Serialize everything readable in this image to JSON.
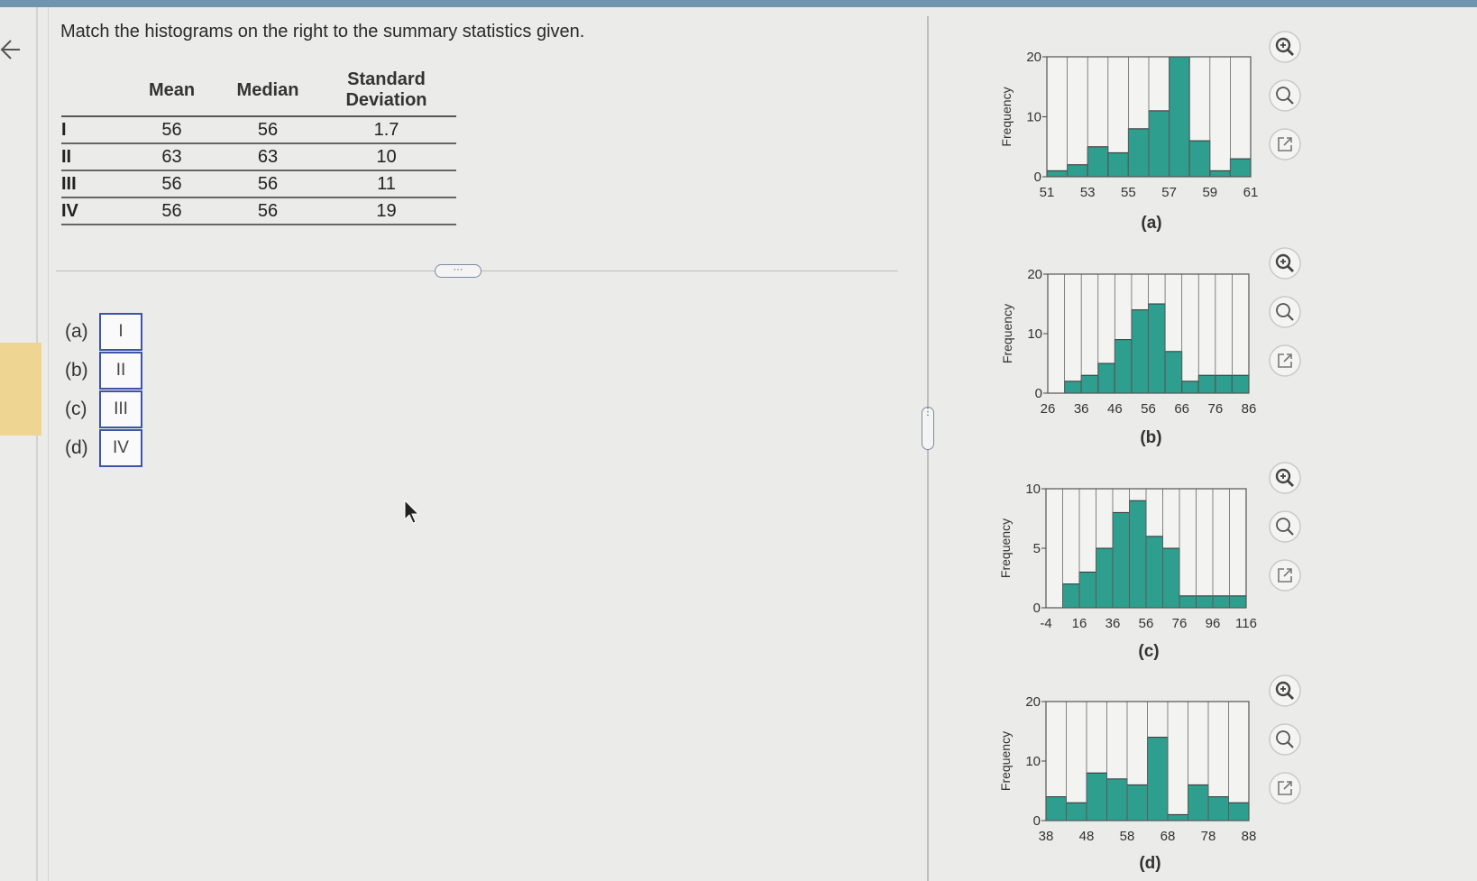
{
  "question": "Match the histograms on the right to the summary statistics given.",
  "table": {
    "headers": [
      "",
      "Mean",
      "Median",
      "Standard Deviation"
    ],
    "rows": [
      {
        "label": "I",
        "mean": "56",
        "median": "56",
        "sd": "1.7"
      },
      {
        "label": "II",
        "mean": "63",
        "median": "63",
        "sd": "10"
      },
      {
        "label": "III",
        "mean": "56",
        "median": "56",
        "sd": "11"
      },
      {
        "label": "IV",
        "mean": "56",
        "median": "56",
        "sd": "19"
      }
    ]
  },
  "divider_handle": "···",
  "answers": [
    {
      "label": "(a)",
      "value": "I"
    },
    {
      "label": "(b)",
      "value": "II"
    },
    {
      "label": "(c)",
      "value": "III"
    },
    {
      "label": "(d)",
      "value": "IV"
    }
  ],
  "icons": [
    "zoom-in-icon",
    "zoom-out-icon",
    "open-external-icon"
  ],
  "colors": {
    "bar_fill": "#2e9e8e",
    "answer_border": "#3e55a6",
    "highlight": "#efd592"
  },
  "chart_data": [
    {
      "type": "bar",
      "caption": "(a)",
      "ylabel": "Frequency",
      "xlabel": "",
      "bin_start": 51,
      "bin_width": 0.5,
      "values": [
        1,
        2,
        5,
        4,
        8,
        11,
        20,
        6,
        1,
        3
      ],
      "xticks": [
        51,
        53,
        55,
        57,
        59,
        61
      ],
      "yticks": [
        0,
        10,
        20
      ],
      "ylim": [
        0,
        20
      ],
      "grid": true
    },
    {
      "type": "bar",
      "caption": "(b)",
      "ylabel": "Frequency",
      "xlabel": "",
      "bin_start": 26,
      "bin_width": 5,
      "values": [
        0,
        2,
        3,
        5,
        9,
        14,
        15,
        7,
        2,
        3,
        3,
        3
      ],
      "xticks": [
        26,
        36,
        46,
        56,
        66,
        76,
        86
      ],
      "yticks": [
        0,
        10,
        20
      ],
      "ylim": [
        0,
        20
      ],
      "grid": true
    },
    {
      "type": "bar",
      "caption": "(c)",
      "ylabel": "Frequency",
      "xlabel": "",
      "bin_start": -4,
      "bin_width": 10,
      "values": [
        0,
        2,
        3,
        5,
        8,
        9,
        6,
        5,
        1,
        1,
        1,
        1
      ],
      "xticks": [
        -4,
        16,
        36,
        56,
        76,
        96,
        116
      ],
      "yticks": [
        0,
        5,
        10
      ],
      "ylim": [
        0,
        10
      ],
      "grid": true
    },
    {
      "type": "bar",
      "caption": "(d)",
      "ylabel": "Frequency",
      "xlabel": "",
      "bin_start": 38,
      "bin_width": 5,
      "values": [
        4,
        3,
        8,
        7,
        6,
        14,
        1,
        6,
        4,
        3
      ],
      "xticks": [
        38,
        48,
        58,
        68,
        78,
        88
      ],
      "yticks": [
        0,
        10,
        20
      ],
      "ylim": [
        0,
        20
      ],
      "grid": true
    }
  ]
}
